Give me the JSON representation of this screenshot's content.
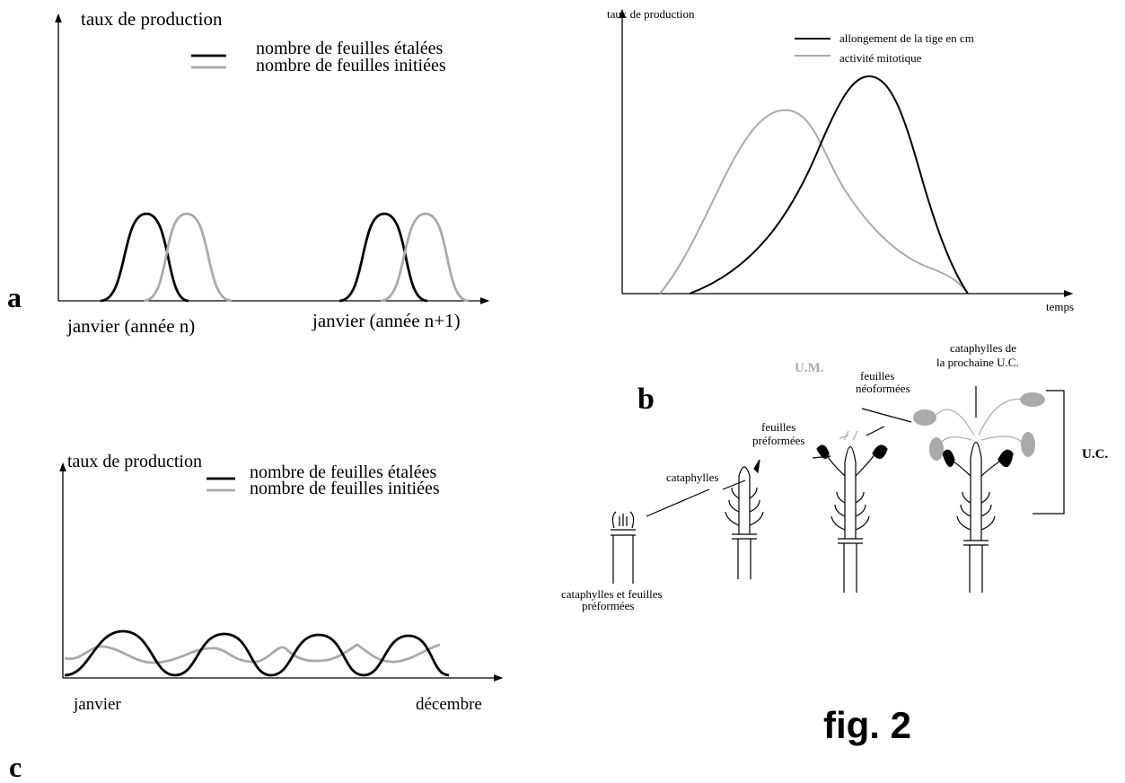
{
  "panels": [
    {
      "letter": "a",
      "y_label": "taux de production",
      "legend": [
        "nombre de feuilles étalées",
        "nombre de feuilles initiées"
      ],
      "x_labels": [
        "janvier (année n)",
        "janvier (année n+1)"
      ]
    },
    {
      "letter": "b",
      "y_label": "taux de production",
      "x_label": "temps",
      "legend": [
        "allongement de la tige en cm",
        "activité mitotique"
      ]
    },
    {
      "letter": "c",
      "y_label": "taux de production",
      "legend": [
        "nombre de feuilles étalées",
        "nombre de feuilles initiées"
      ],
      "x_labels": [
        "janvier",
        "décembre"
      ]
    }
  ],
  "diagram": {
    "um": "U.M.",
    "neoformees": [
      "feuilles",
      "néoformées"
    ],
    "prochaine": [
      "cataphylles de",
      "la prochaine U.C."
    ],
    "uc": "U.C.",
    "preformees": [
      "feuilles",
      "préformées"
    ],
    "cataphylles": "cataphylles",
    "bottom": [
      "cataphylles et feuilles",
      "préformées"
    ]
  },
  "figure_label": "fig. 2"
}
